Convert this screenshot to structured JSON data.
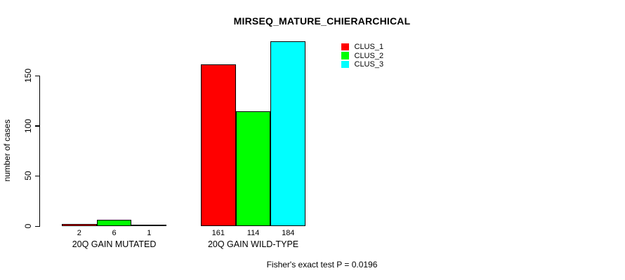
{
  "chart_data": {
    "type": "bar",
    "title": "MIRSEQ_MATURE_CHIERARCHICAL",
    "xlabel": "",
    "ylabel": "number of cases",
    "categories": [
      "20Q GAIN MUTATED",
      "20Q GAIN WILD-TYPE"
    ],
    "series": [
      {
        "name": "CLUS_1",
        "color": "#ff0000",
        "values": [
          2,
          161
        ]
      },
      {
        "name": "CLUS_2",
        "color": "#00ff00",
        "values": [
          6,
          114
        ]
      },
      {
        "name": "CLUS_3",
        "color": "#00ffff",
        "values": [
          1,
          184
        ]
      }
    ],
    "yticks": [
      0,
      50,
      100,
      150
    ],
    "ylim": [
      0,
      184
    ],
    "grid": false,
    "legend_position": "inside-top-right",
    "bar_value_labels": [
      "2",
      "6",
      "1",
      "161",
      "114",
      "184"
    ],
    "annotation": "Fisher's exact test P = 0.0196"
  },
  "colors": {
    "axis": "#000000",
    "background": "#ffffff",
    "bar_border": "#000000"
  }
}
